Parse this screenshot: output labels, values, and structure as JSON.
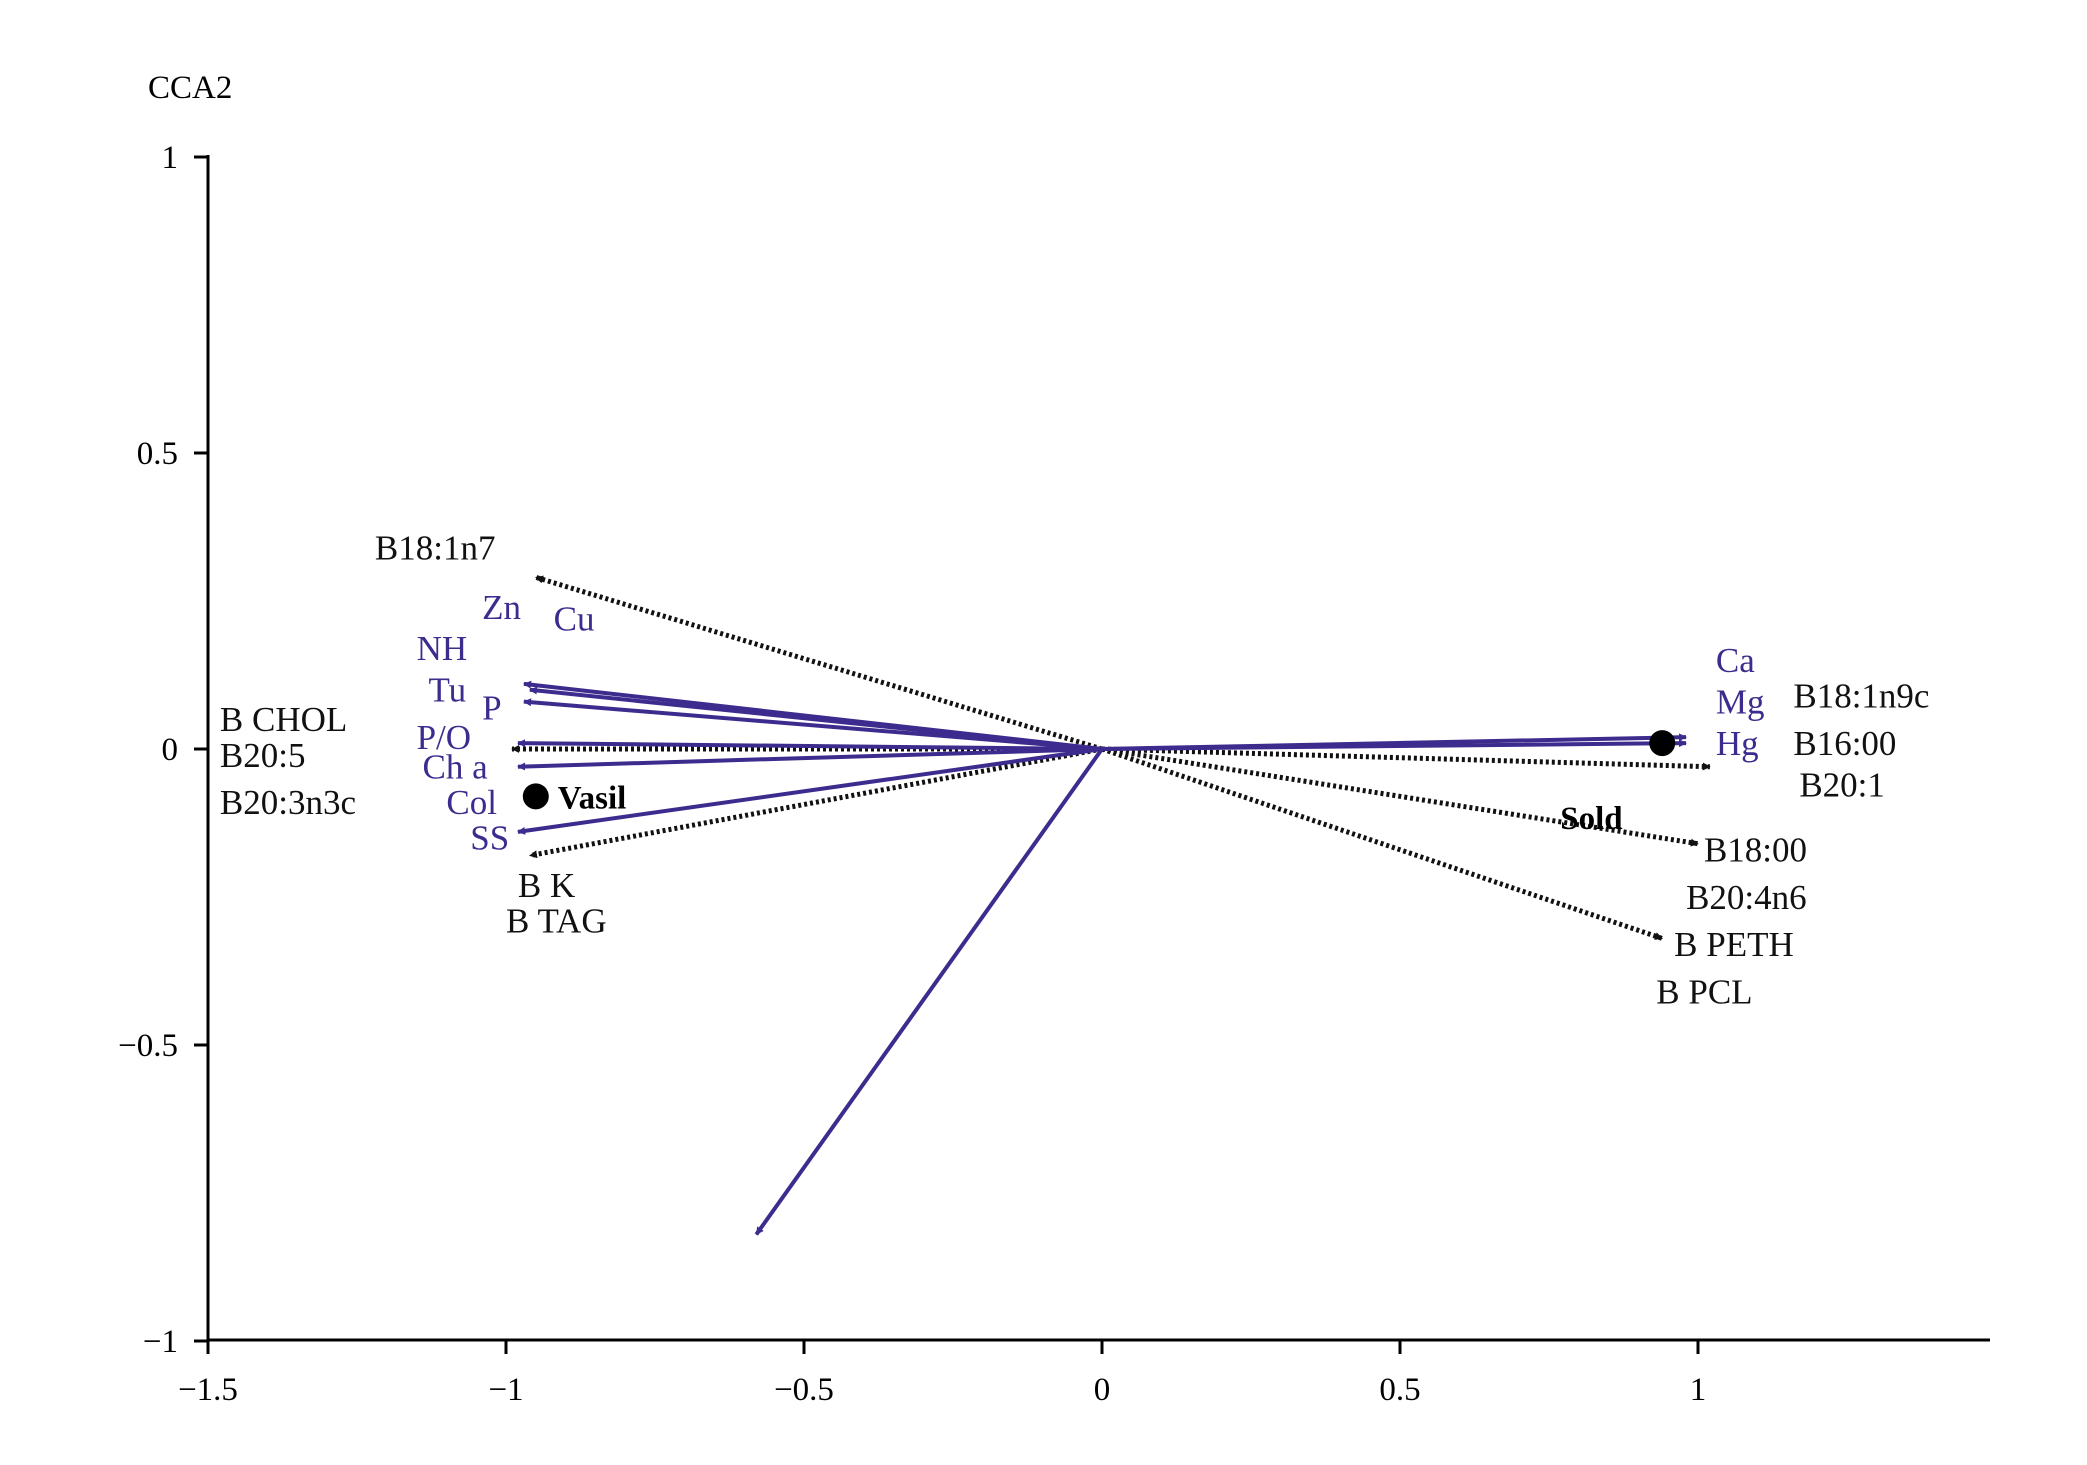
{
  "chart_data": {
    "type": "scatter",
    "subtype": "cca-biplot",
    "title": "",
    "xlabel": "",
    "ylabel": "CCA2",
    "xlim": [
      -1.5,
      1.5
    ],
    "ylim": [
      -1,
      1
    ],
    "x_ticks": [
      -1.5,
      -1,
      -0.5,
      0,
      0.5,
      1
    ],
    "y_ticks": [
      -1,
      -0.5,
      0,
      0.5,
      1
    ],
    "x_tick_labels": [
      "−1.5",
      "−1",
      "−0.5",
      "0",
      "0.5",
      "1"
    ],
    "y_tick_labels": [
      "−1",
      "−0.5",
      "0",
      "0.5",
      "1"
    ],
    "colors": {
      "env": "#3d2b8e",
      "species": "#111111",
      "axis": "#000000"
    },
    "env_arrows": [
      {
        "x": -0.97,
        "y": 0.11
      },
      {
        "x": -0.96,
        "y": 0.1
      },
      {
        "x": -0.97,
        "y": 0.08
      },
      {
        "x": -0.98,
        "y": 0.01
      },
      {
        "x": -0.98,
        "y": -0.03
      },
      {
        "x": -0.98,
        "y": -0.14
      },
      {
        "x": 0.98,
        "y": 0.02
      },
      {
        "x": 0.98,
        "y": 0.01
      },
      {
        "x": -0.58,
        "y": -0.82
      }
    ],
    "species_arrows": [
      {
        "x": -0.95,
        "y": 0.29
      },
      {
        "x": -0.99,
        "y": 0.0
      },
      {
        "x": -0.96,
        "y": -0.18
      },
      {
        "x": 1.02,
        "y": -0.03
      },
      {
        "x": 1.0,
        "y": -0.16
      },
      {
        "x": 0.94,
        "y": -0.32
      }
    ],
    "sites": [
      {
        "name": "Vasil",
        "x": -0.95,
        "y": -0.08
      },
      {
        "name": "Sold",
        "x": 0.94,
        "y": 0.01
      }
    ],
    "env_labels": [
      {
        "text": "Zn",
        "x": -1.04,
        "y": 0.22
      },
      {
        "text": "Cu",
        "x": -0.92,
        "y": 0.2
      },
      {
        "text": "NH",
        "x": -1.15,
        "y": 0.15
      },
      {
        "text": "Tu",
        "x": -1.13,
        "y": 0.08
      },
      {
        "text": "P",
        "x": -1.04,
        "y": 0.05
      },
      {
        "text": "P/O",
        "x": -1.15,
        "y": 0.0
      },
      {
        "text": "Ch a",
        "x": -1.14,
        "y": -0.05
      },
      {
        "text": "Col",
        "x": -1.1,
        "y": -0.11
      },
      {
        "text": "SS",
        "x": -1.06,
        "y": -0.17
      },
      {
        "text": "Ca",
        "x": 1.03,
        "y": 0.13
      },
      {
        "text": "Mg",
        "x": 1.03,
        "y": 0.06
      },
      {
        "text": "Hg",
        "x": 1.03,
        "y": -0.01
      }
    ],
    "species_labels": [
      {
        "text": "B18:1n7",
        "x": -1.22,
        "y": 0.32
      },
      {
        "text": "B CHOL",
        "x": -1.48,
        "y": 0.03
      },
      {
        "text": "B20:5",
        "x": -1.48,
        "y": -0.03
      },
      {
        "text": "B20:3n3c",
        "x": -1.48,
        "y": -0.11
      },
      {
        "text": "B K",
        "x": -0.98,
        "y": -0.25
      },
      {
        "text": "B TAG",
        "x": -1.0,
        "y": -0.31
      },
      {
        "text": "B18:1n9c",
        "x": 1.16,
        "y": 0.07
      },
      {
        "text": "B16:00",
        "x": 1.16,
        "y": -0.01
      },
      {
        "text": "B20:1",
        "x": 1.17,
        "y": -0.08
      },
      {
        "text": "B18:00",
        "x": 1.01,
        "y": -0.19
      },
      {
        "text": "B20:4n6",
        "x": 0.98,
        "y": -0.27
      },
      {
        "text": "B PETH",
        "x": 0.96,
        "y": -0.35
      },
      {
        "text": "B PCL",
        "x": 0.93,
        "y": -0.43
      }
    ]
  }
}
